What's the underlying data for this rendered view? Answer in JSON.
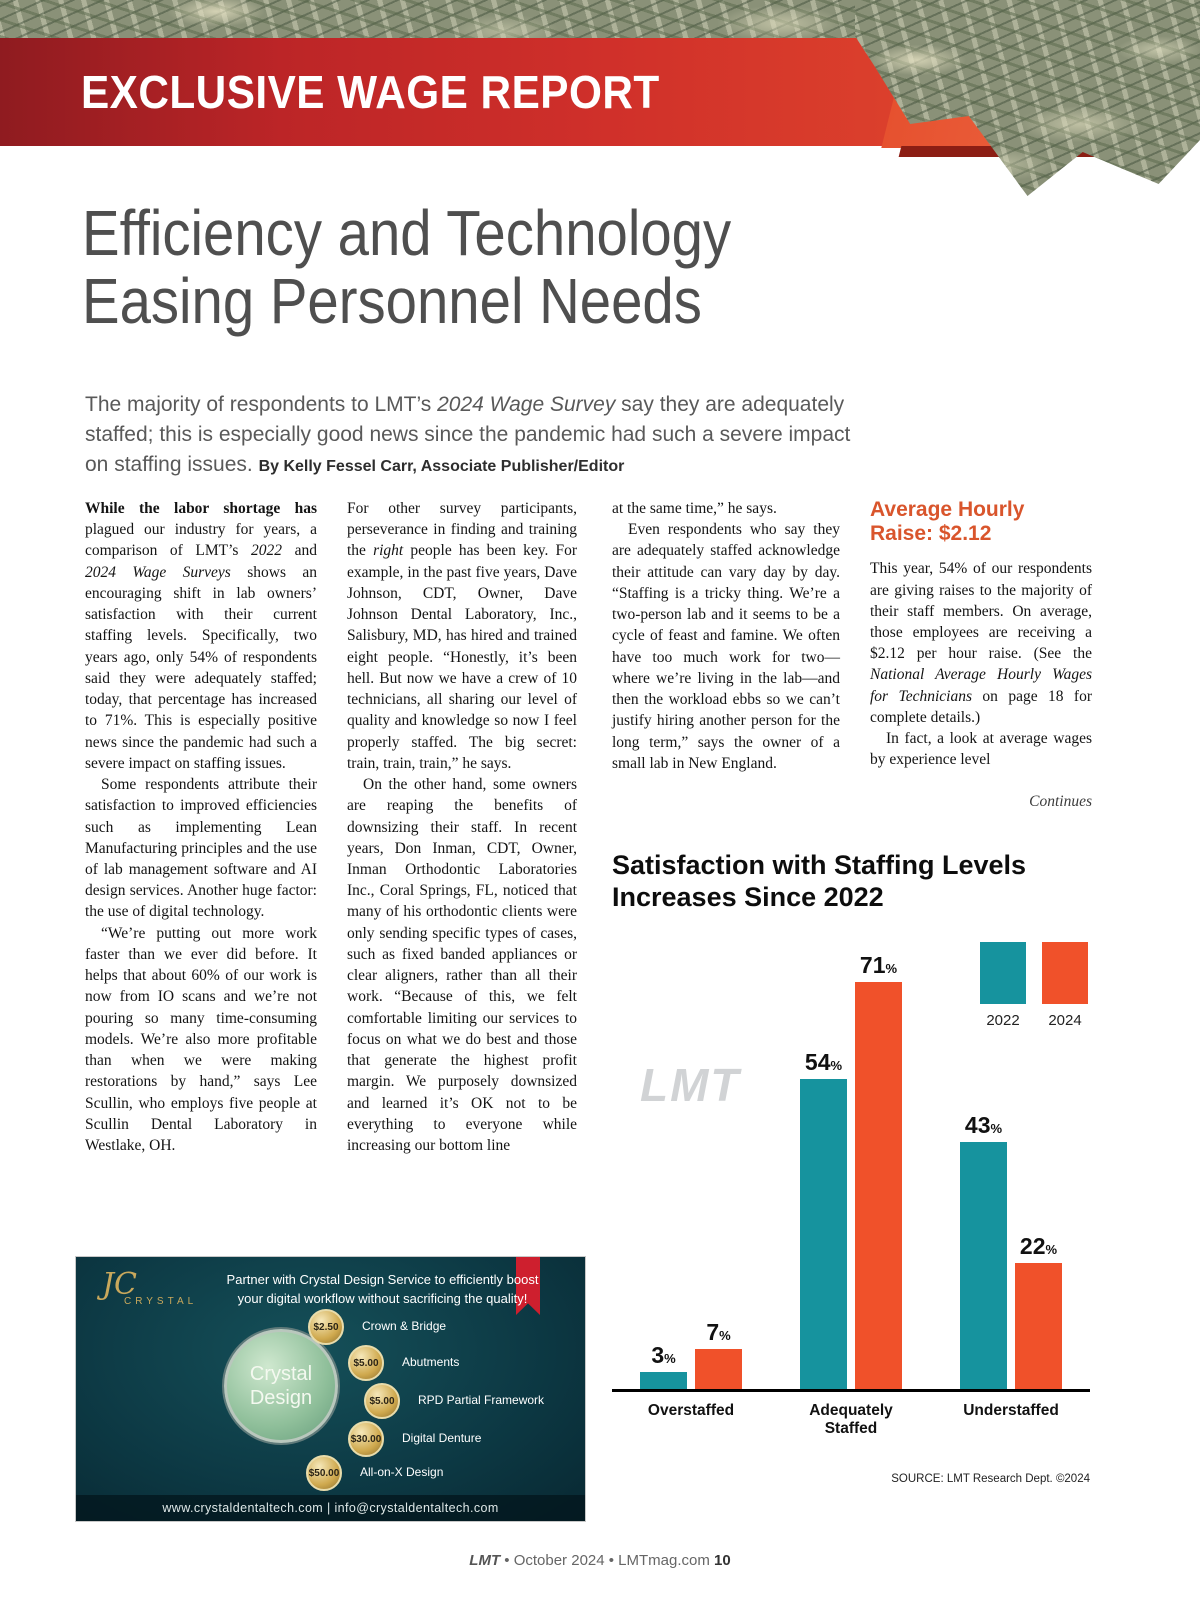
{
  "banner": {
    "title": "EXCLUSIVE WAGE REPORT"
  },
  "headline": {
    "line1": "Efficiency and Technology",
    "line2": "Easing Personnel Needs"
  },
  "deck": {
    "segments": [
      {
        "t": "The majority of respondents to LMT’s "
      },
      {
        "t": "2024 Wage Survey",
        "i": 1
      },
      {
        "t": " say they are adequately staffed; this is especially good news since the pandemic had such a severe impact on staffing issues. "
      }
    ],
    "byline": "By Kelly Fessel Carr, Associate Publisher/Editor"
  },
  "columns": {
    "col1": {
      "paragraphs": [
        [
          {
            "t": "While the labor shortage has ",
            "b": 1
          },
          {
            "t": "plagued our industry for years, a comparison of LMT’s "
          },
          {
            "t": "2022",
            "i": 1
          },
          {
            "t": " and "
          },
          {
            "t": "2024 Wage Surveys",
            "i": 1
          },
          {
            "t": " shows an encouraging shift in lab owners’ satisfaction with their current staffing levels. Specifically, two years ago, only 54% of respondents said they were adequately staffed; today, that percentage has increased to 71%. This is especially positive news since the pandemic had such a severe impact on staffing issues."
          }
        ],
        [
          {
            "t": "Some respondents attribute their satisfaction to improved efficiencies such as implementing Lean Manufacturing principles and the use of lab management software and AI design services. Another huge factor: the use of digital technology."
          }
        ],
        [
          {
            "t": "“We’re putting out more work faster than we ever did before. It helps that about 60% of our work is now from IO scans and we’re not pouring so many time-consuming models. We’re also more profitable than when we were making restorations by hand,” says Lee Scullin, who employs five people at Scullin Dental Laboratory in Westlake, OH."
          }
        ]
      ]
    },
    "col2": {
      "paragraphs": [
        [
          {
            "t": "For other survey participants, perseverance in finding and training the "
          },
          {
            "t": "right",
            "i": 1
          },
          {
            "t": " people has been key. For example, in the past five years, Dave Johnson, CDT, Owner, Dave Johnson Dental Laboratory, Inc., Salisbury, MD, has hired and trained eight people. “Honestly, it’s been hell. But now we have a crew of 10 technicians, all sharing our level of quality and knowledge so now I feel properly staffed. The big secret: train, train, train,” he says."
          }
        ],
        [
          {
            "t": "On the other hand, some owners are reaping the benefits of downsizing their staff. In recent years, Don Inman, CDT, Owner, Inman Orthodontic Laboratories Inc., Coral Springs, FL, noticed that many of his orthodontic clients were only sending specific types of cases, such as fixed banded appliances or clear aligners, rather than all their work. “Because of this, we felt comfortable limiting our services to focus on what we do best and those that generate the highest profit margin. We purposely downsized and learned it’s OK not to be everything to everyone while increasing our bottom line"
          }
        ]
      ]
    },
    "col3": {
      "paragraphs": [
        [
          {
            "t": "at the same time,” he says."
          }
        ],
        [
          {
            "t": "Even respondents who say they are adequately staffed acknowledge their attitude can vary day by day. “Staffing is a tricky thing. We’re a two-person lab and it seems to be a cycle of feast and famine. We often have too much work for two—where we’re living in the lab—and then the workload ebbs so we can’t justify hiring another person for the long term,” says the owner of a small lab in New England."
          }
        ]
      ]
    }
  },
  "sidebar": {
    "heading_line1": "Average Hourly",
    "heading_line2": "Raise: $2.12",
    "paragraphs": [
      [
        {
          "t": "This year, 54% of our respondents are giving raises to the majority of their staff members. On average, those employees are receiving a $2.12 per hour raise. (See the "
        },
        {
          "t": "National Average Hourly Wages for Technicians",
          "i": 1
        },
        {
          "t": " on page 18 for complete details.)"
        }
      ],
      [
        {
          "t": "In fact, a look at average wages by experience level"
        }
      ]
    ],
    "continues": "Continues"
  },
  "chart_data": {
    "type": "bar",
    "title_line1": "Satisfaction with Staffing Levels",
    "title_line2": "Increases Since 2022",
    "categories": [
      "Overstaffed",
      "Adequately Staffed",
      "Understaffed"
    ],
    "series": [
      {
        "name": "2022",
        "color": "#16939e",
        "values": [
          3,
          54,
          43
        ]
      },
      {
        "name": "2024",
        "color": "#f0512a",
        "values": [
          7,
          71,
          22
        ]
      }
    ],
    "value_suffix": "%",
    "ylim": [
      0,
      75
    ],
    "legend_position": "top-right",
    "grid": false,
    "watermark": "LMT",
    "source": "SOURCE: LMT Research Dept. ©2024"
  },
  "ad": {
    "brand_script": "JC",
    "brand_name": "CRYSTAL",
    "headline_line1": "Partner with Crystal Design Service to efficiently boost",
    "headline_line2": "your digital workflow without sacrificing the quality!",
    "circle_line1": "Crystal",
    "circle_line2": "Design",
    "services": [
      {
        "price": "$2.50",
        "label": "Crown & Bridge"
      },
      {
        "price": "$5.00",
        "label": "Abutments"
      },
      {
        "price": "$5.00",
        "label": "RPD Partial Framework"
      },
      {
        "price": "$30.00",
        "label": "Digital Denture"
      },
      {
        "price": "$50.00",
        "label": "All-on-X Design"
      }
    ],
    "url_line": "www.crystaldentaltech.com | info@crystaldentaltech.com"
  },
  "footer": {
    "brand": "LMT",
    "middle": " • October 2024 • LMTmag.com ",
    "page": "10"
  }
}
